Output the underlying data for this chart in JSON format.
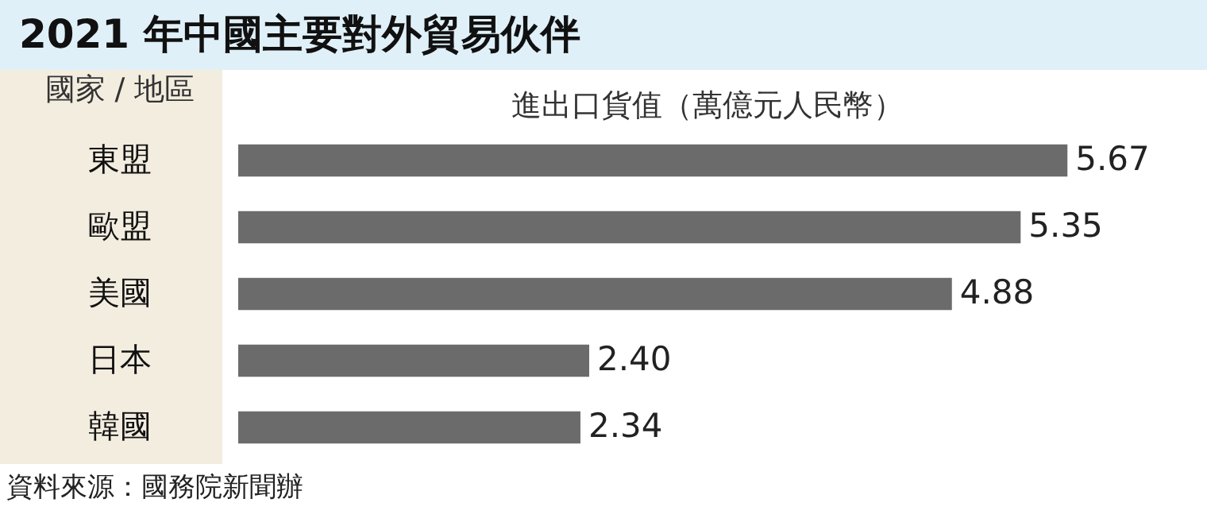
{
  "chart_data": {
    "type": "bar",
    "orientation": "horizontal",
    "title": "2021 年中國主要對外貿易伙伴",
    "xlabel": "進出口貨值（萬億元人民幣）",
    "ylabel": "國家 / 地區",
    "categories": [
      "東盟",
      "歐盟",
      "美國",
      "日本",
      "韓國"
    ],
    "values": [
      5.67,
      5.35,
      4.88,
      2.4,
      2.34
    ],
    "value_labels": [
      "5.67",
      "5.35",
      "4.88",
      "2.40",
      "2.34"
    ],
    "color": "#6b6b6b",
    "annotations": [
      "資料來源：國務院新聞辦"
    ]
  }
}
